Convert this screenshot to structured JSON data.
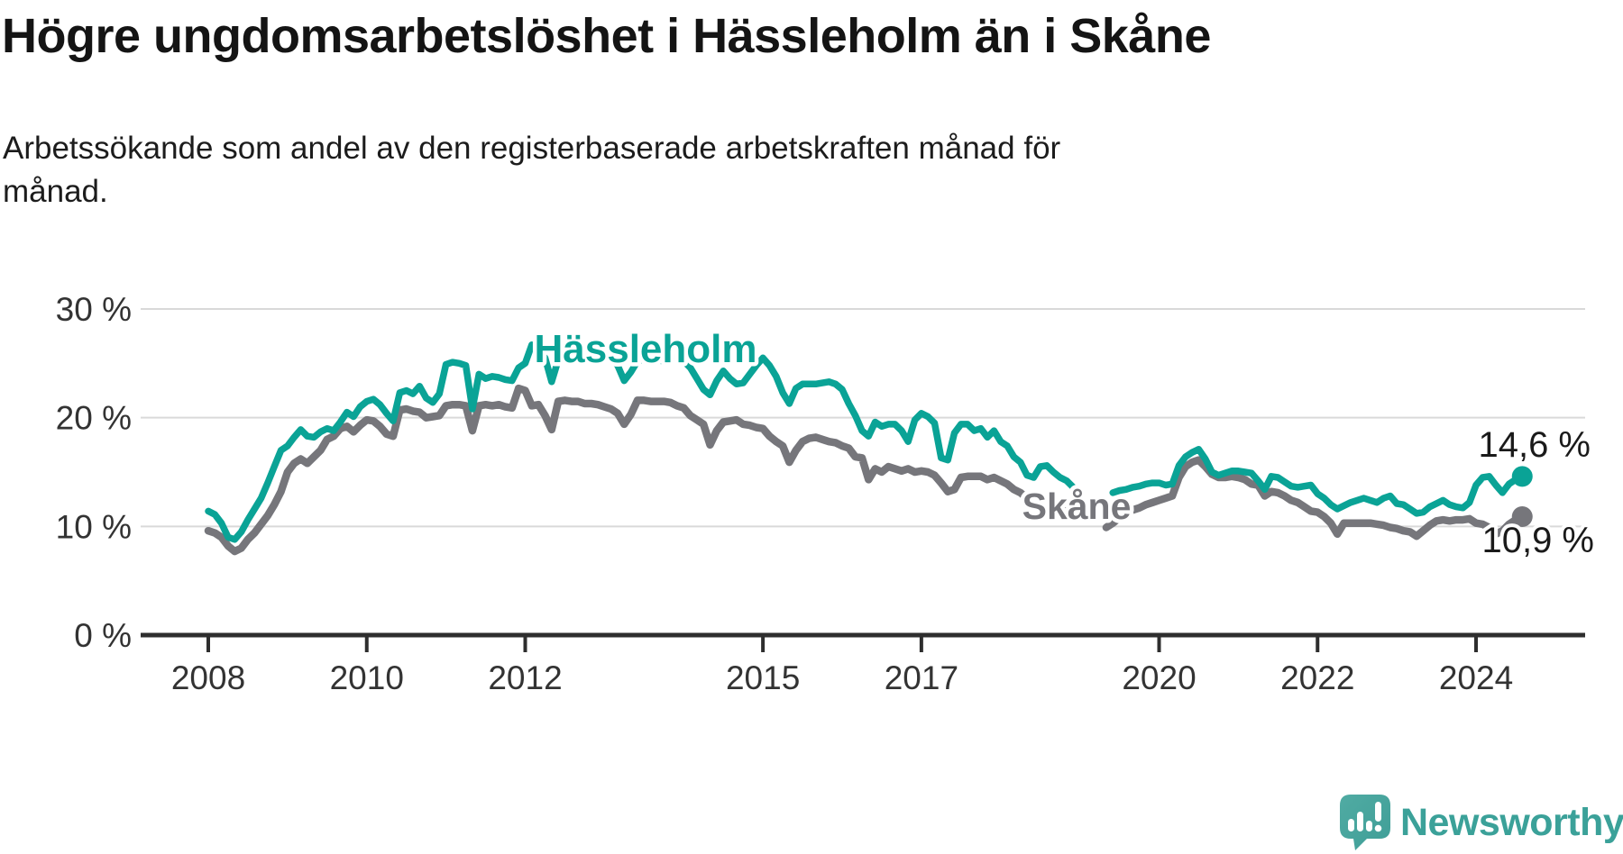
{
  "title": "Högre ungdomsarbetslöshet i Hässleholm än i Skåne",
  "subtitle": {
    "lines": [
      "Arbetssökande som andel av den registerbaserade arbetskraften månad för",
      "månad."
    ]
  },
  "colors": {
    "hassleholm": "#0aa396",
    "skane": "#76767b",
    "grid": "#d9d9d9",
    "axis": "#2e2e2e",
    "axis_text": "#333333",
    "value_text": "#1a1a1a",
    "logo_bubble": "#48a59e",
    "logo_text": "#3ba199"
  },
  "logo": {
    "text": "Newsworthy",
    "icon": "speech-bubble-bar-chart-icon"
  },
  "chart_data": {
    "type": "line",
    "unit": "percent",
    "frequency": "monthly",
    "start": "2008-01",
    "end": "2024-08",
    "data_gap": "2019 (first months missing in both series)",
    "x_axis": {
      "ticks": [
        2008,
        2010,
        2012,
        2015,
        2017,
        2020,
        2022,
        2024
      ],
      "range": [
        2008,
        2024.7
      ],
      "grid": false
    },
    "y_axis": {
      "ticks": [
        {
          "value": 0,
          "label": "0 %"
        },
        {
          "value": 10,
          "label": "10 %"
        },
        {
          "value": 20,
          "label": "20 %"
        },
        {
          "value": 30,
          "label": "30 %"
        }
      ],
      "range": [
        0,
        30
      ],
      "grid": true,
      "grid_skip_zero": true
    },
    "series_labels": [
      {
        "text": "Hässleholm"
      },
      {
        "text": "Skåne"
      }
    ],
    "series": [
      {
        "name": "Hässleholm",
        "color": "#0aa396",
        "end_value": 14.6,
        "end_label": "14,6 %",
        "values": [
          11.4,
          11.1,
          10.3,
          9.0,
          8.8,
          9.5,
          10.6,
          11.6,
          12.6,
          14.0,
          15.5,
          17.0,
          17.4,
          18.2,
          18.9,
          18.3,
          18.2,
          18.7,
          19.0,
          18.8,
          19.6,
          20.5,
          20.1,
          21.0,
          21.5,
          21.7,
          21.2,
          20.4,
          19.7,
          22.3,
          22.5,
          22.2,
          22.9,
          21.8,
          21.4,
          22.2,
          24.9,
          25.1,
          25.0,
          24.8,
          20.8,
          24.0,
          23.6,
          23.8,
          23.7,
          23.5,
          23.4,
          24.6,
          25.0,
          26.7,
          26.4,
          25.5,
          23.3,
          25.3,
          25.6,
          25.2,
          25.6,
          25.4,
          25.2,
          25.6,
          25.8,
          25.5,
          24.8,
          23.4,
          24.2,
          25.2,
          25.4,
          25.1,
          25.3,
          25.2,
          25.4,
          25.6,
          25.2,
          24.6,
          23.6,
          22.6,
          22.1,
          23.4,
          24.3,
          23.6,
          23.1,
          23.2,
          24.0,
          24.8,
          25.5,
          24.8,
          23.8,
          22.3,
          21.3,
          22.7,
          23.1,
          23.1,
          23.1,
          23.2,
          23.3,
          23.1,
          22.6,
          21.3,
          20.2,
          18.8,
          18.3,
          19.6,
          19.2,
          19.4,
          19.4,
          18.8,
          17.8,
          19.8,
          20.4,
          20.1,
          19.5,
          16.3,
          16.1,
          18.6,
          19.4,
          19.4,
          18.8,
          19.0,
          18.2,
          18.8,
          17.8,
          17.4,
          16.4,
          15.9,
          14.7,
          14.5,
          15.5,
          15.6,
          15.0,
          14.5,
          14.2,
          13.6,
          null,
          null,
          null,
          null,
          null,
          13.1,
          13.3,
          13.4,
          13.6,
          13.7,
          13.9,
          14.0,
          14.0,
          13.8,
          13.9,
          15.6,
          16.4,
          16.8,
          17.1,
          16.2,
          15.0,
          14.7,
          14.9,
          15.1,
          15.1,
          15.0,
          14.9,
          14.2,
          13.4,
          14.6,
          14.5,
          14.1,
          13.7,
          13.6,
          13.7,
          13.8,
          13.0,
          12.6,
          12.0,
          11.6,
          11.9,
          12.2,
          12.4,
          12.6,
          12.4,
          12.2,
          12.6,
          12.8,
          12.1,
          12.0,
          11.6,
          11.2,
          11.3,
          11.8,
          12.1,
          12.4,
          12.0,
          11.8,
          11.7,
          12.2,
          13.8,
          14.5,
          14.6,
          13.8,
          13.1,
          13.9,
          14.3,
          14.6
        ]
      },
      {
        "name": "Skåne",
        "color": "#76767b",
        "end_value": 10.9,
        "end_label": "10,9 %",
        "values": [
          9.6,
          9.4,
          9.0,
          8.2,
          7.7,
          8.0,
          8.8,
          9.4,
          10.2,
          11.0,
          12.0,
          13.2,
          15.0,
          15.8,
          16.2,
          15.8,
          16.4,
          17.0,
          18.0,
          18.3,
          19.0,
          19.2,
          18.7,
          19.3,
          19.8,
          19.7,
          19.2,
          18.5,
          18.3,
          20.7,
          20.8,
          20.6,
          20.5,
          20.0,
          20.1,
          20.2,
          21.1,
          21.2,
          21.2,
          21.1,
          18.8,
          21.1,
          21.2,
          21.1,
          21.2,
          21.0,
          20.9,
          22.7,
          22.5,
          21.1,
          21.2,
          20.2,
          18.9,
          21.5,
          21.6,
          21.5,
          21.5,
          21.3,
          21.3,
          21.2,
          21.0,
          20.8,
          20.4,
          19.4,
          20.3,
          21.6,
          21.6,
          21.5,
          21.5,
          21.5,
          21.4,
          21.1,
          20.9,
          20.2,
          19.8,
          19.4,
          17.5,
          18.8,
          19.6,
          19.7,
          19.8,
          19.4,
          19.3,
          19.1,
          19.0,
          18.3,
          17.8,
          17.4,
          15.9,
          17.0,
          17.8,
          18.1,
          18.2,
          18.0,
          17.8,
          17.7,
          17.4,
          17.2,
          16.4,
          16.3,
          14.3,
          15.3,
          15.0,
          15.5,
          15.3,
          15.1,
          15.3,
          15.0,
          15.1,
          15.0,
          14.7,
          14.0,
          13.2,
          13.4,
          14.5,
          14.6,
          14.6,
          14.6,
          14.3,
          14.5,
          14.2,
          13.9,
          13.4,
          13.1,
          12.6,
          12.2,
          12.6,
          12.2,
          12.0,
          11.8,
          11.7,
          11.4,
          null,
          null,
          null,
          null,
          9.9,
          10.3,
          10.8,
          11.2,
          11.5,
          11.7,
          12.0,
          12.2,
          12.4,
          12.6,
          12.8,
          14.5,
          15.5,
          15.9,
          16.1,
          15.5,
          14.8,
          14.5,
          14.5,
          14.6,
          14.5,
          14.3,
          13.9,
          13.8,
          12.8,
          13.2,
          13.1,
          12.8,
          12.4,
          12.2,
          11.8,
          11.4,
          11.3,
          10.9,
          10.3,
          9.3,
          10.3,
          10.3,
          10.3,
          10.3,
          10.3,
          10.2,
          10.1,
          9.9,
          9.8,
          9.6,
          9.5,
          9.1,
          9.6,
          10.1,
          10.5,
          10.6,
          10.5,
          10.6,
          10.6,
          10.7,
          10.3,
          10.2,
          9.9,
          9.3,
          9.6,
          10.2,
          10.6,
          10.9
        ]
      }
    ]
  }
}
